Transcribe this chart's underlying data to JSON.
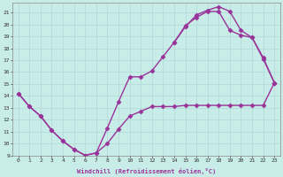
{
  "xlabel": "Windchill (Refroidissement éolien,°C)",
  "background_color": "#c8ece8",
  "grid_color": "#b0d8d4",
  "line_color": "#993399",
  "line_width": 1.0,
  "marker": "D",
  "marker_size": 2.5,
  "xlim": [
    -0.5,
    23.5
  ],
  "ylim": [
    9,
    21.8
  ],
  "line1_x": [
    0,
    1,
    2,
    3,
    4,
    5,
    6,
    7,
    8,
    9,
    10,
    11,
    12,
    13,
    14,
    15,
    16,
    17,
    18,
    19,
    20,
    21,
    22,
    23
  ],
  "line1_y": [
    14.2,
    13.1,
    12.3,
    11.1,
    10.2,
    9.5,
    9.0,
    9.2,
    10.0,
    11.2,
    12.3,
    12.7,
    13.1,
    13.1,
    13.1,
    13.2,
    13.2,
    13.2,
    13.2,
    13.2,
    13.2,
    13.2,
    13.2,
    15.1
  ],
  "line2_x": [
    0,
    1,
    2,
    3,
    4,
    5,
    6,
    7,
    8,
    9,
    10,
    11,
    12,
    13,
    14,
    15,
    16,
    17,
    18,
    19,
    20,
    21,
    22,
    23
  ],
  "line2_y": [
    14.2,
    13.1,
    12.3,
    11.1,
    10.2,
    9.5,
    9.0,
    9.2,
    11.3,
    13.5,
    15.6,
    15.6,
    16.1,
    17.3,
    18.5,
    19.9,
    20.6,
    21.1,
    21.1,
    19.5,
    19.1,
    18.9,
    17.1,
    15.1
  ],
  "line3_x": [
    14,
    15,
    16,
    17,
    18,
    19,
    20,
    21,
    22,
    23
  ],
  "line3_y": [
    18.5,
    19.8,
    20.8,
    21.2,
    21.5,
    21.1,
    19.5,
    18.9,
    17.2,
    15.1
  ],
  "yticks": [
    9,
    10,
    11,
    12,
    13,
    14,
    15,
    16,
    17,
    18,
    19,
    20,
    21
  ],
  "xticks": [
    0,
    1,
    2,
    3,
    4,
    5,
    6,
    7,
    8,
    9,
    10,
    11,
    12,
    13,
    14,
    15,
    16,
    17,
    18,
    19,
    20,
    21,
    22,
    23
  ]
}
